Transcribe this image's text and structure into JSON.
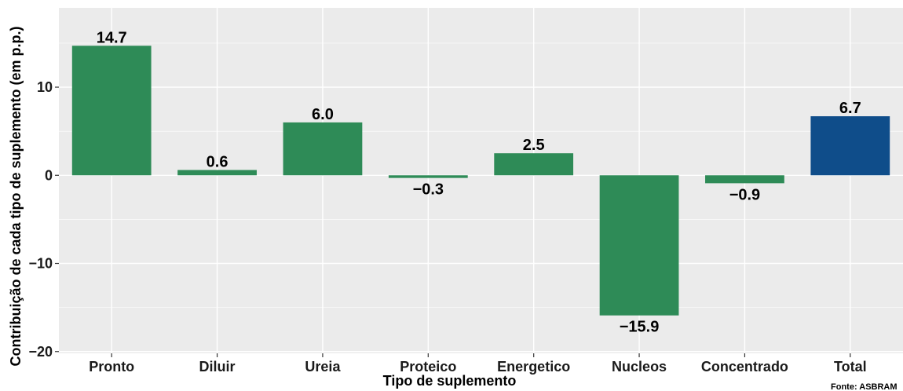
{
  "chart_data": {
    "type": "bar",
    "categories": [
      "Pronto",
      "Diluir",
      "Ureia",
      "Proteico",
      "Energetico",
      "Nucleos",
      "Concentrado",
      "Total"
    ],
    "values": [
      14.7,
      0.6,
      6.0,
      -0.3,
      2.5,
      -15.9,
      -0.9,
      6.7
    ],
    "value_labels": [
      "14.7",
      "0.6",
      "6.0",
      "−0.3",
      "2.5",
      "−15.9",
      "−0.9",
      "6.7"
    ],
    "xlabel": "Tipo de suplemento",
    "ylabel": "Contribuição de cada tipo de suplemento (em p.p.)",
    "ylim": [
      -20.2,
      19
    ],
    "yticks": [
      -20,
      -10,
      0,
      10
    ],
    "ytick_labels": [
      "−20",
      "−10",
      "0",
      "10"
    ],
    "grid": true,
    "colors": {
      "bar": "#2e8b57",
      "total_bar": "#0f4d8a",
      "panel_background": "#ebebeb",
      "grid": "#ffffff"
    },
    "caption": "Fonte: ASBRAM"
  }
}
